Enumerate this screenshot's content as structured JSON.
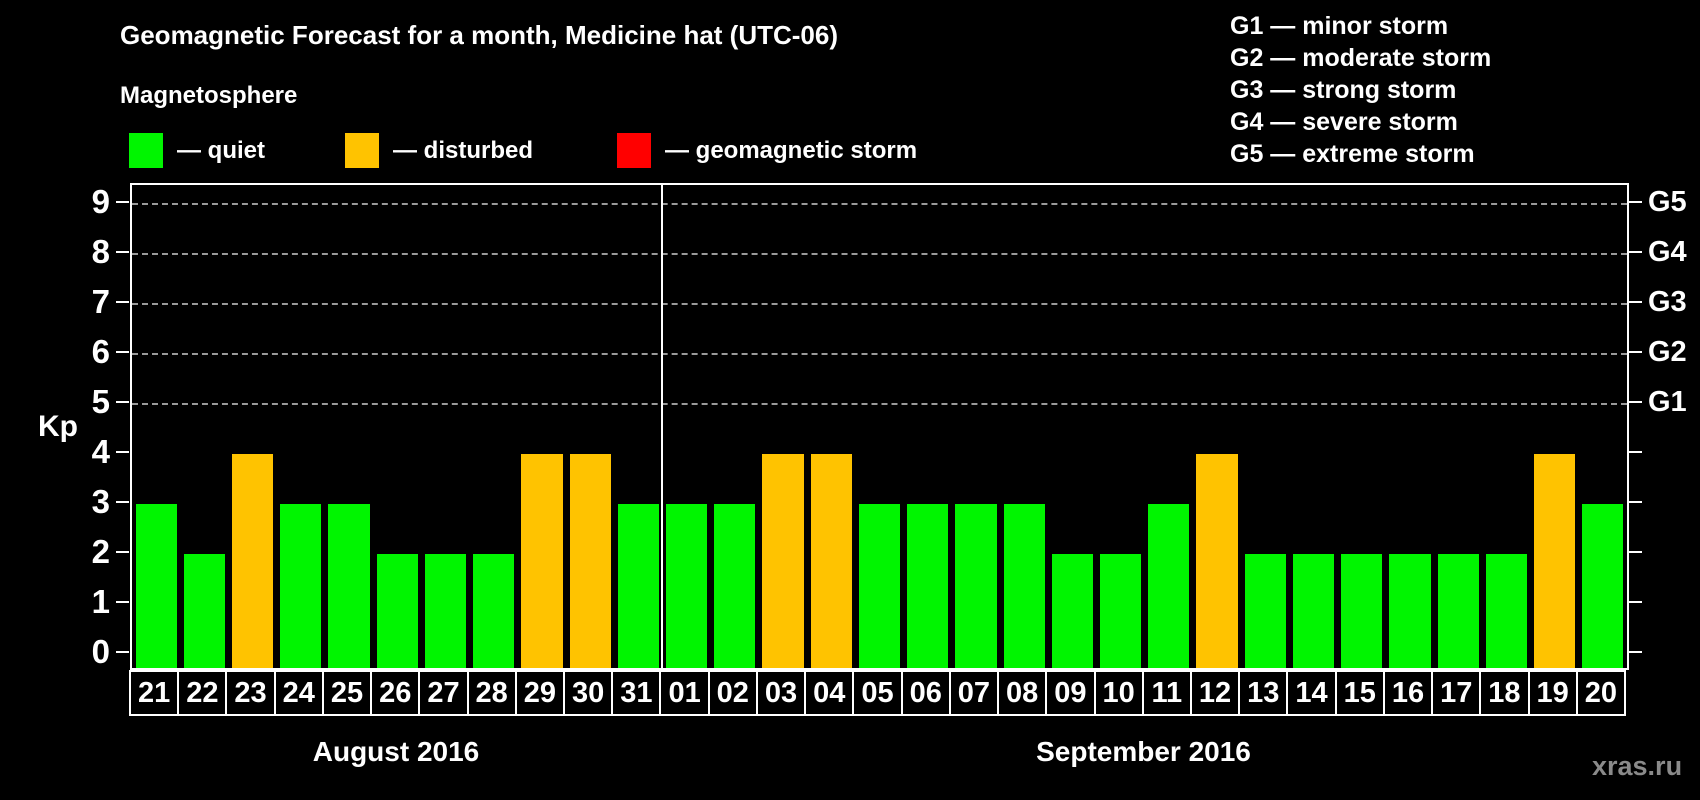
{
  "title": "Geomagnetic Forecast for a month, Medicine hat (UTC-06)",
  "subtitle": "Magnetosphere",
  "legend": {
    "items": [
      {
        "key": "quiet",
        "label": "— quiet",
        "color": "#00f500"
      },
      {
        "key": "disturbed",
        "label": "— disturbed",
        "color": "#ffc300"
      },
      {
        "key": "storm",
        "label": "— geomagnetic storm",
        "color": "#ff0000"
      }
    ]
  },
  "g_scale_legend": [
    "G1 — minor storm",
    "G2 — moderate storm",
    "G3 — strong storm",
    "G4 — severe storm",
    "G5 — extreme storm"
  ],
  "watermark": "xras.ru",
  "chart_data": {
    "type": "bar",
    "ylabel": "Kp",
    "ylim": [
      0,
      9
    ],
    "yticks": [
      0,
      1,
      2,
      3,
      4,
      5,
      6,
      7,
      8,
      9
    ],
    "gridlines_at": [
      5,
      6,
      7,
      8,
      9
    ],
    "right_axis_labels": [
      {
        "kp": 5,
        "label": "G1"
      },
      {
        "kp": 6,
        "label": "G2"
      },
      {
        "kp": 7,
        "label": "G3"
      },
      {
        "kp": 8,
        "label": "G4"
      },
      {
        "kp": 9,
        "label": "G5"
      }
    ],
    "status_colors": {
      "quiet": "#00f500",
      "disturbed": "#ffc300",
      "storm": "#ff0000"
    },
    "months": [
      {
        "label": "August 2016",
        "days": [
          "21",
          "22",
          "23",
          "24",
          "25",
          "26",
          "27",
          "28",
          "29",
          "30",
          "31"
        ],
        "values": [
          3,
          2,
          4,
          3,
          3,
          2,
          2,
          2,
          4,
          4,
          3
        ],
        "status": [
          "quiet",
          "quiet",
          "disturbed",
          "quiet",
          "quiet",
          "quiet",
          "quiet",
          "quiet",
          "disturbed",
          "disturbed",
          "quiet"
        ]
      },
      {
        "label": "September 2016",
        "days": [
          "01",
          "02",
          "03",
          "04",
          "05",
          "06",
          "07",
          "08",
          "09",
          "10",
          "11",
          "12",
          "13",
          "14",
          "15",
          "16",
          "17",
          "18",
          "19",
          "20"
        ],
        "values": [
          3,
          3,
          4,
          4,
          3,
          3,
          3,
          3,
          2,
          2,
          3,
          4,
          2,
          2,
          2,
          2,
          2,
          2,
          4,
          3
        ],
        "status": [
          "quiet",
          "quiet",
          "disturbed",
          "disturbed",
          "quiet",
          "quiet",
          "quiet",
          "quiet",
          "quiet",
          "quiet",
          "quiet",
          "disturbed",
          "quiet",
          "quiet",
          "quiet",
          "quiet",
          "quiet",
          "quiet",
          "disturbed",
          "quiet"
        ]
      }
    ]
  }
}
